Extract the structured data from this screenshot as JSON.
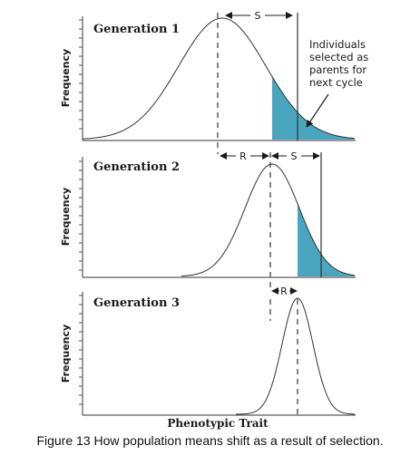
{
  "figure": {
    "caption": "Figure 13 How population means shift as a result of selection.",
    "x_axis_label": "Phenotypic Trait",
    "y_axis_label": "Frequency",
    "annotation": [
      "Individuals",
      "selected as",
      "parents for",
      "next cycle"
    ],
    "shade_color": "#4aa5bf",
    "panels": [
      {
        "title": "Generation 1",
        "markers": [
          {
            "label": "S"
          }
        ]
      },
      {
        "title": "Generation 2",
        "markers": [
          {
            "label": "R"
          },
          {
            "label": "S"
          }
        ]
      },
      {
        "title": "Generation 3",
        "markers": [
          {
            "label": "R"
          }
        ]
      }
    ]
  }
}
